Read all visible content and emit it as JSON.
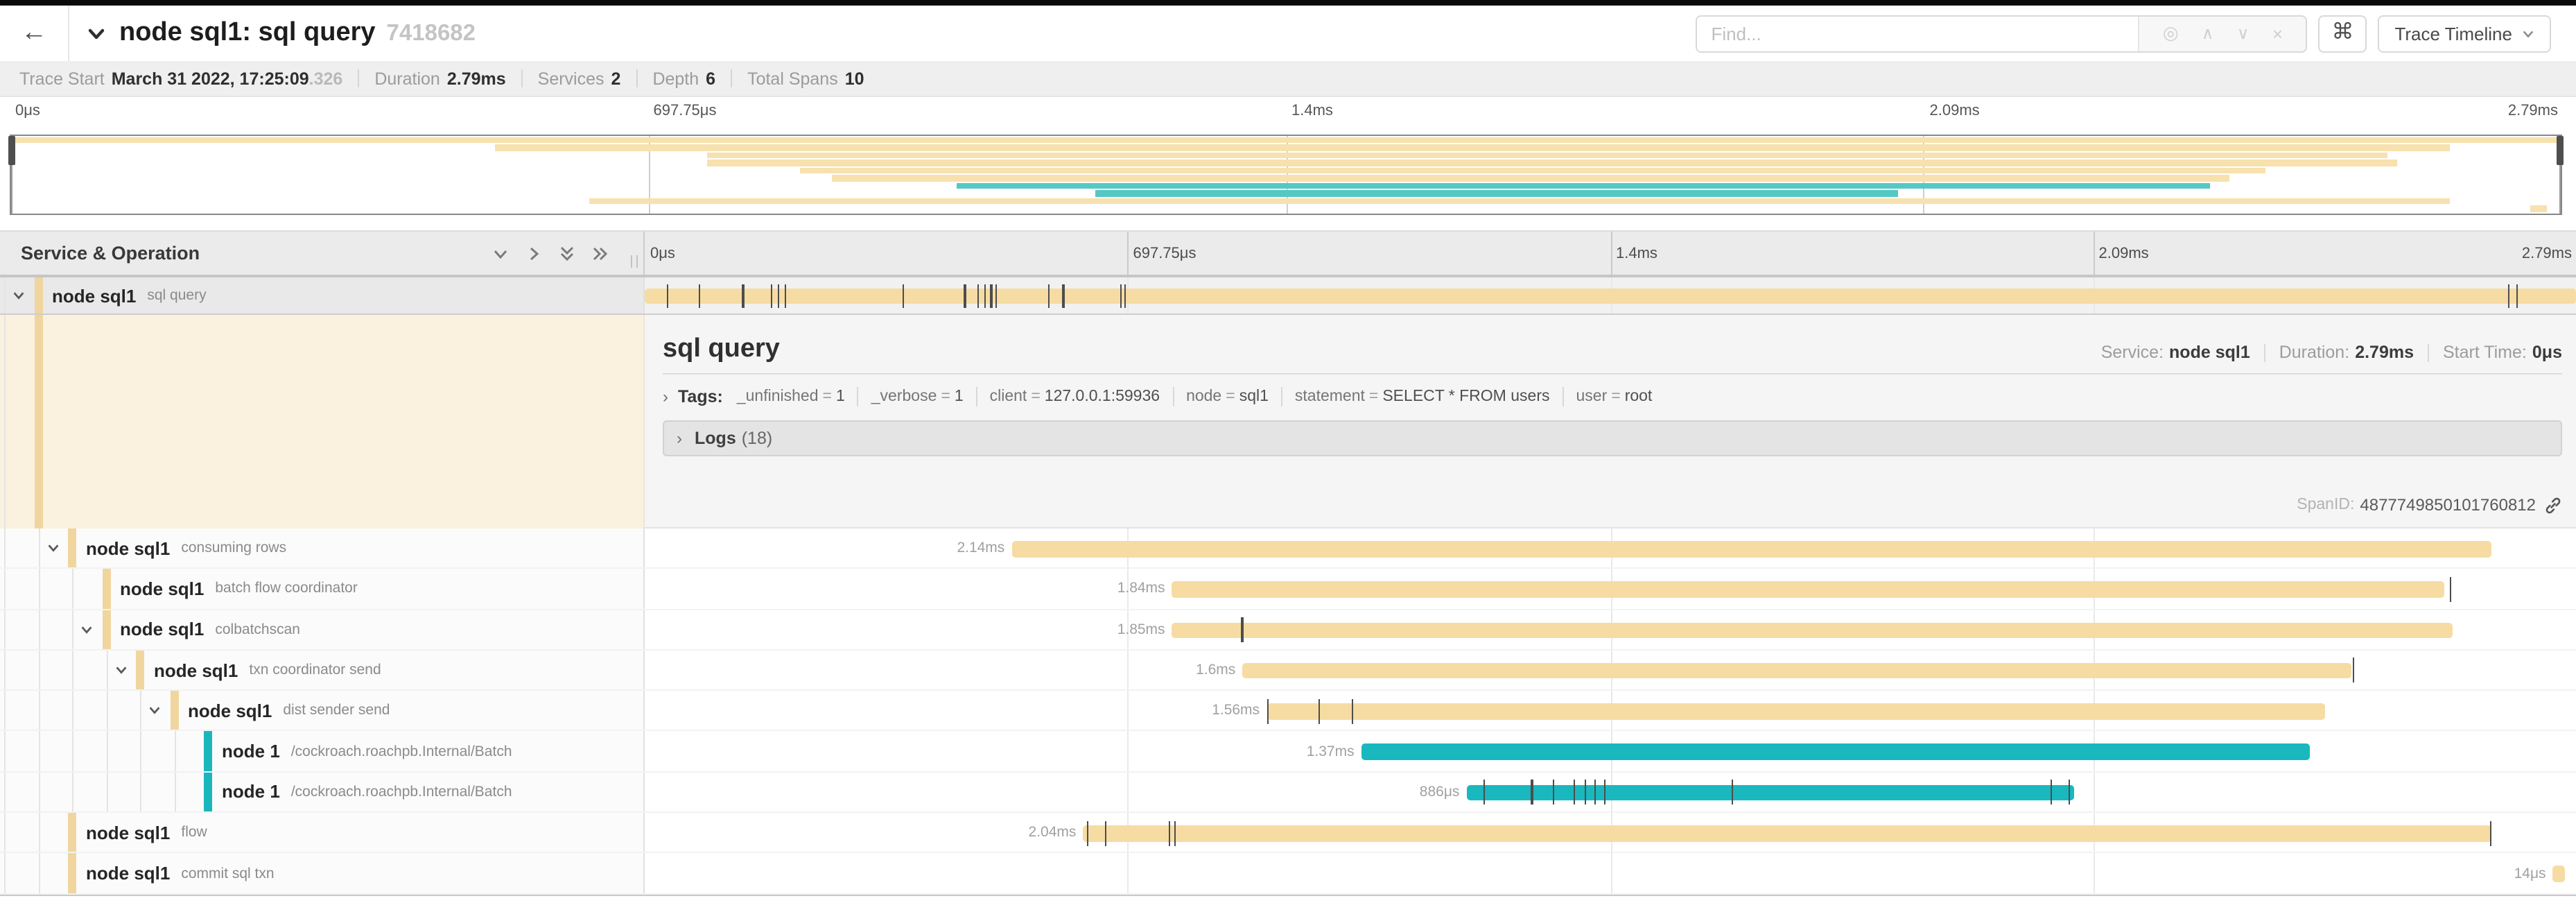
{
  "header": {
    "back_icon": "←",
    "title": "node sql1: sql query",
    "trace_id": "7418682",
    "find_placeholder": "Find...",
    "find_icons": [
      "target",
      "chevron-up",
      "chevron-down",
      "close"
    ],
    "find_icon_glyphs": {
      "target": "◎",
      "up": "∧",
      "down": "∨",
      "close": "×"
    },
    "shortcut_icon": "⌘",
    "view_button_label": "Trace Timeline"
  },
  "stats": [
    {
      "label": "Trace Start",
      "value": "March 31 2022, 17:25:09",
      "suffix": ".326"
    },
    {
      "label": "Duration",
      "value": "2.79ms"
    },
    {
      "label": "Services",
      "value": "2"
    },
    {
      "label": "Depth",
      "value": "6"
    },
    {
      "label": "Total Spans",
      "value": "10"
    }
  ],
  "timeline": {
    "column_header": "Service & Operation",
    "ticks": [
      "0μs",
      "697.75μs",
      "1.4ms",
      "2.09ms",
      "2.79ms"
    ],
    "tick_positions": [
      0,
      0.25,
      0.5,
      0.75,
      1
    ]
  },
  "spans": [
    {
      "service": "node sql1",
      "operation": "sql query",
      "depth": 0,
      "has_children": true,
      "color": "tan",
      "start": 0,
      "end": 1,
      "duration_label": "",
      "selected": true,
      "log_ticks": [
        0.0115,
        0.028,
        0.0506,
        0.065,
        0.0686,
        0.0725,
        0.1335,
        0.1654,
        0.172,
        0.1759,
        0.1791,
        0.1816,
        0.2089,
        0.2164,
        0.2462,
        0.2482,
        0.965,
        0.969
      ]
    },
    {
      "service": "node sql1",
      "operation": "consuming rows",
      "depth": 1,
      "has_children": true,
      "color": "tan",
      "start": 0.19,
      "end": 0.9565,
      "duration_label": "2.14ms",
      "log_ticks": []
    },
    {
      "service": "node sql1",
      "operation": "batch flow coordinator",
      "depth": 2,
      "has_children": false,
      "color": "tan",
      "start": 0.273,
      "end": 0.932,
      "duration_label": "1.84ms",
      "log_ticks": [
        0.9345
      ]
    },
    {
      "service": "node sql1",
      "operation": "colbatchscan",
      "depth": 2,
      "has_children": true,
      "color": "tan",
      "start": 0.273,
      "end": 0.936,
      "duration_label": "1.85ms",
      "log_ticks": [
        0.309
      ]
    },
    {
      "service": "node sql1",
      "operation": "txn coordinator send",
      "depth": 3,
      "has_children": true,
      "color": "tan",
      "start": 0.3095,
      "end": 0.884,
      "duration_label": "1.6ms",
      "log_ticks": [
        0.8845
      ]
    },
    {
      "service": "node sql1",
      "operation": "dist sender send",
      "depth": 4,
      "has_children": true,
      "color": "tan",
      "start": 0.322,
      "end": 0.87,
      "duration_label": "1.56ms",
      "log_ticks": [
        0.3225,
        0.349,
        0.366
      ]
    },
    {
      "service": "node 1",
      "operation": "/cockroach.roachpb.Internal/Batch",
      "depth": 5,
      "has_children": false,
      "color": "teal",
      "start": 0.371,
      "end": 0.8625,
      "duration_label": "1.37ms",
      "log_ticks": []
    },
    {
      "service": "node 1",
      "operation": "/cockroach.roachpb.Internal/Batch",
      "depth": 5,
      "has_children": false,
      "color": "teal",
      "start": 0.4255,
      "end": 0.74,
      "duration_label": "886μs",
      "log_ticks": [
        0.434,
        0.459,
        0.47,
        0.481,
        0.4865,
        0.4915,
        0.4965,
        0.563,
        0.728,
        0.737
      ]
    },
    {
      "service": "node sql1",
      "operation": "flow",
      "depth": 1,
      "has_children": false,
      "color": "tan",
      "start": 0.227,
      "end": 0.9565,
      "duration_label": "2.04ms",
      "log_ticks": [
        0.229,
        0.238,
        0.271,
        0.274,
        0.9555
      ]
    },
    {
      "service": "node sql1",
      "operation": "commit sql txn",
      "depth": 1,
      "has_children": false,
      "color": "tan",
      "start": 0.988,
      "end": 0.9945,
      "duration_label": "14μs",
      "log_ticks": []
    }
  ],
  "detail": {
    "title": "sql query",
    "service_label": "Service:",
    "service": "node sql1",
    "duration_label": "Duration:",
    "duration": "2.79ms",
    "start_label": "Start Time:",
    "start": "0μs",
    "tags_label": "Tags:",
    "tags": [
      {
        "key": "_unfinished",
        "value": "1"
      },
      {
        "key": "_verbose",
        "value": "1"
      },
      {
        "key": "client",
        "value": "127.0.0.1:59936"
      },
      {
        "key": "node",
        "value": "sql1"
      },
      {
        "key": "statement",
        "value": "SELECT * FROM users"
      },
      {
        "key": "user",
        "value": "root"
      }
    ],
    "logs_label": "Logs",
    "logs_count": "(18)",
    "span_id_label": "SpanID:",
    "span_id": "4877749850101760812"
  },
  "colors": {
    "span_tan": "#F6DCA3",
    "span_teal": "#19B8BE",
    "minimap_tan": "#F7E1AE",
    "minimap_teal": "#55C8C4",
    "accent_tan": "#F0D69E",
    "accent_teal": "#1AB6BC"
  }
}
